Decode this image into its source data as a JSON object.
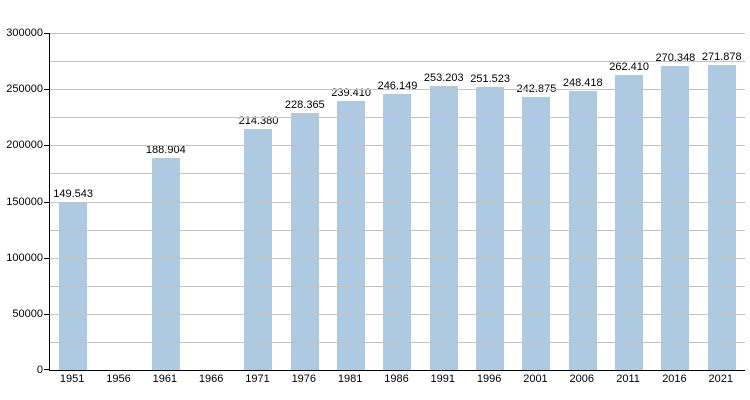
{
  "chart_data": {
    "type": "bar",
    "title": "",
    "xlabel": "",
    "ylabel": "",
    "categories": [
      "1951",
      "1956",
      "1961",
      "1966",
      "1971",
      "1976",
      "1981",
      "1986",
      "1991",
      "1996",
      "2001",
      "2006",
      "2011",
      "2016",
      "2021"
    ],
    "values": [
      149543,
      null,
      188904,
      null,
      214380,
      228365,
      239410,
      246149,
      253203,
      251523,
      242875,
      248418,
      262410,
      270348,
      271878
    ],
    "value_labels": [
      "149.543",
      "",
      "188.904",
      "",
      "214.380",
      "228.365",
      "239.410",
      "246.149",
      "253.203",
      "251.523",
      "242.875",
      "248.418",
      "262.410",
      "270.348",
      "271.878"
    ],
    "ylim": [
      0,
      300000
    ],
    "y_major_tick_interval": 50000,
    "y_minor_grid_interval": 25000,
    "y_tick_labels": [
      "0",
      "50000",
      "100000",
      "150000",
      "200000",
      "250000",
      "300000"
    ],
    "grid": "on",
    "legend": "none",
    "colors": {
      "bar_fill": "#aec9e2",
      "gridline": "#c3c3c3",
      "axis": "#000000",
      "text": "#000000",
      "background": "#ffffff"
    }
  }
}
